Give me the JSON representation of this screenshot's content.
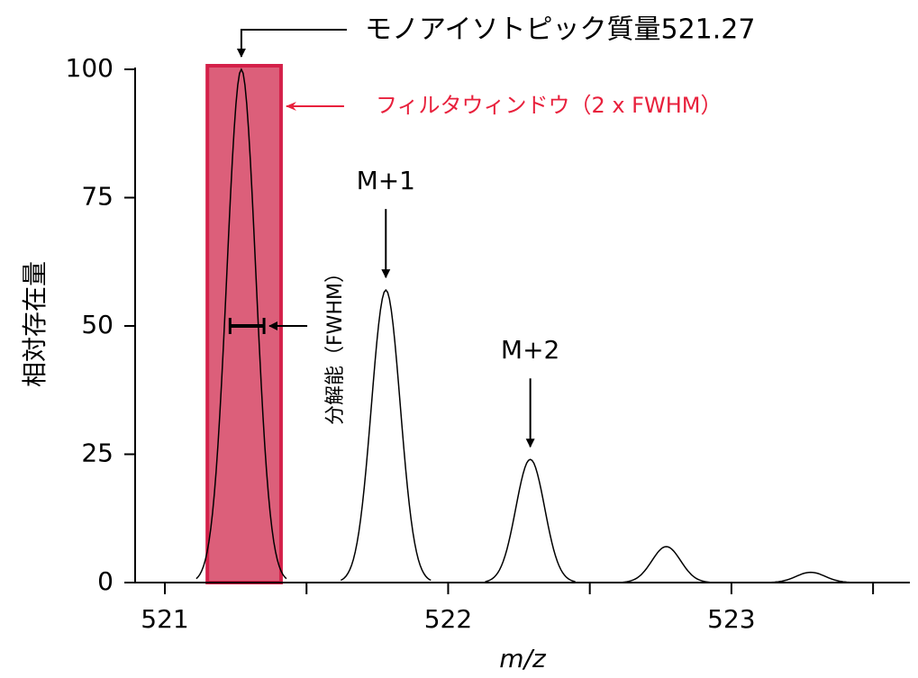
{
  "chart_data": {
    "type": "spectrum",
    "title": "モノアイソトピック質量521.27",
    "x_label": "m/z",
    "y_label": "相対存在量",
    "peaks": {
      "x": [
        521.27,
        521.78,
        522.29,
        522.77,
        523.28
      ],
      "values": [
        100,
        57,
        24,
        7,
        2
      ],
      "color": "#000000"
    },
    "peak_labels": [
      null,
      "M+1",
      "M+2",
      null,
      null
    ],
    "xlim": [
      520.895,
      523.63
    ],
    "xticks": [
      521,
      522,
      523
    ],
    "x_minor_ticks": [
      521.5,
      522.5,
      523.5
    ],
    "ylim": [
      0,
      100
    ],
    "yticks": [
      0,
      25,
      50,
      75,
      100
    ],
    "filter_window": {
      "label": "フィルタウィンドウ（2 x FWHM）",
      "x": [
        521.15,
        521.41
      ],
      "color": "#dc5f7a",
      "label_color": "#e8203c"
    },
    "resolution": {
      "label": "分解能（FWHM）",
      "x": [
        521.23,
        521.35
      ],
      "y": 50
    }
  }
}
